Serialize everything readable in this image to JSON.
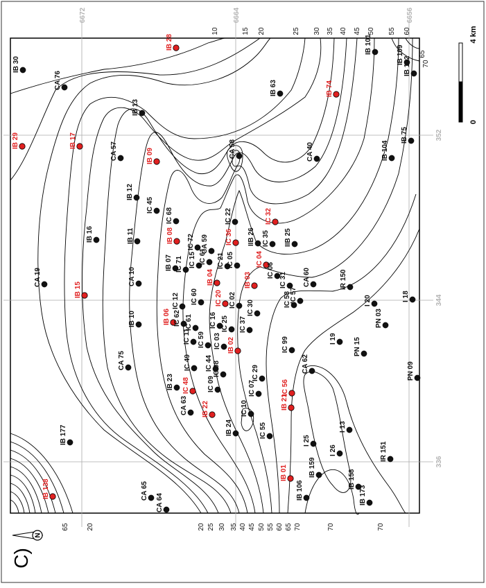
{
  "figure": {
    "panel_label": "C)",
    "scale_bar": {
      "zero_label": "0",
      "end_label": "4 km"
    },
    "north_arrow": {
      "label": "N"
    }
  },
  "colors": {
    "highlight_well": "#e02020",
    "normal_well": "#111111",
    "contour": "#000000",
    "grid": "#aaaaaa",
    "grid_label": "#b4b4b4"
  },
  "grid_labels": {
    "top": [
      "6672",
      "6664",
      "6656"
    ],
    "right": [
      "352",
      "344",
      "336"
    ]
  },
  "contour_labels": {
    "top": [
      "10",
      "15",
      "20",
      "25",
      "30",
      "35",
      "40",
      "45",
      "50",
      "55",
      "60",
      "65",
      "70"
    ],
    "bottom": [
      "20",
      "25",
      "30",
      "35",
      "40",
      "45",
      "50",
      "55",
      "60",
      "65",
      "70",
      "70",
      "70"
    ],
    "left": [
      "65",
      "20"
    ]
  },
  "wells": [
    {
      "name": "IB 30",
      "highlight": false
    },
    {
      "name": "CA 76",
      "highlight": false
    },
    {
      "name": "IB 28",
      "highlight": true
    },
    {
      "name": "IB 63",
      "highlight": false
    },
    {
      "name": "IB 74",
      "highlight": true
    },
    {
      "name": "IB 101",
      "highlight": false
    },
    {
      "name": "IB 109",
      "highlight": false
    },
    {
      "name": "IB 122",
      "highlight": false
    },
    {
      "name": "IB 13",
      "highlight": false
    },
    {
      "name": "IB 17",
      "highlight": true
    },
    {
      "name": "IB 29",
      "highlight": true
    },
    {
      "name": "CA 57",
      "highlight": false
    },
    {
      "name": "IB 09",
      "highlight": true
    },
    {
      "name": "CA 58",
      "highlight": false
    },
    {
      "name": "CA 40",
      "highlight": false
    },
    {
      "name": "IB 104",
      "highlight": false
    },
    {
      "name": "IB 75",
      "highlight": false
    },
    {
      "name": "IB 12",
      "highlight": false
    },
    {
      "name": "IC 45",
      "highlight": false
    },
    {
      "name": "IC 68",
      "highlight": false
    },
    {
      "name": "IC 22",
      "highlight": false
    },
    {
      "name": "IC 32",
      "highlight": true
    },
    {
      "name": "IB 16",
      "highlight": false
    },
    {
      "name": "IB 11",
      "highlight": false
    },
    {
      "name": "IB 08",
      "highlight": true
    },
    {
      "name": "IC 72",
      "highlight": false
    },
    {
      "name": "CA 59",
      "highlight": false
    },
    {
      "name": "IC 36",
      "highlight": true
    },
    {
      "name": "IIB 26",
      "highlight": false
    },
    {
      "name": "IC 35",
      "highlight": false
    },
    {
      "name": "IIB 25",
      "highlight": false
    },
    {
      "name": "CA 19",
      "highlight": false
    },
    {
      "name": "IB 15",
      "highlight": true
    },
    {
      "name": "CA 10",
      "highlight": false
    },
    {
      "name": "IB 07",
      "highlight": false
    },
    {
      "name": "IC 71",
      "highlight": false
    },
    {
      "name": "IC 15",
      "highlight": false
    },
    {
      "name": "IC 61",
      "highlight": false
    },
    {
      "name": "IC 21",
      "highlight": false
    },
    {
      "name": "IC 05",
      "highlight": false
    },
    {
      "name": "IB 04",
      "highlight": true
    },
    {
      "name": "IB 03",
      "highlight": true
    },
    {
      "name": "IC 04",
      "highlight": true
    },
    {
      "name": "IC 06",
      "highlight": false
    },
    {
      "name": "IC 31",
      "highlight": false
    },
    {
      "name": "CA 60",
      "highlight": false
    },
    {
      "name": "IC 57",
      "highlight": false
    },
    {
      "name": "IC 58",
      "highlight": false
    },
    {
      "name": "IR 150",
      "highlight": false
    },
    {
      "name": "IC 12",
      "highlight": false
    },
    {
      "name": "IC 60",
      "highlight": false
    },
    {
      "name": "IC 20",
      "highlight": true
    },
    {
      "name": "IC 02",
      "highlight": false
    },
    {
      "name": "IC 30",
      "highlight": false
    },
    {
      "name": "I 20",
      "highlight": false
    },
    {
      "name": "I 18",
      "highlight": false
    },
    {
      "name": "IB 10",
      "highlight": false
    },
    {
      "name": "IB 06",
      "highlight": true
    },
    {
      "name": "IC 62",
      "highlight": false
    },
    {
      "name": "IC 61",
      "highlight": false
    },
    {
      "name": "IC 16",
      "highlight": false
    },
    {
      "name": "IC 25",
      "highlight": false
    },
    {
      "name": "IC 37",
      "highlight": false
    },
    {
      "name": "I 19",
      "highlight": false
    },
    {
      "name": "PN 03",
      "highlight": false
    },
    {
      "name": "IC 11",
      "highlight": false
    },
    {
      "name": "IC 59",
      "highlight": false
    },
    {
      "name": "IC 03",
      "highlight": false
    },
    {
      "name": "IB 02",
      "highlight": true
    },
    {
      "name": "IC 99",
      "highlight": false
    },
    {
      "name": "PN 15",
      "highlight": false
    },
    {
      "name": "CA 75",
      "highlight": false
    },
    {
      "name": "IC 49",
      "highlight": false
    },
    {
      "name": "IC 44",
      "highlight": false
    },
    {
      "name": "IC 08",
      "highlight": false
    },
    {
      "name": "IC 29",
      "highlight": false
    },
    {
      "name": "IC 07",
      "highlight": false
    },
    {
      "name": "IC 56",
      "highlight": true
    },
    {
      "name": "CA 62",
      "highlight": false
    },
    {
      "name": "PN 09",
      "highlight": false
    },
    {
      "name": "IB 23",
      "highlight": false
    },
    {
      "name": "IC 48",
      "highlight": true
    },
    {
      "name": "IC 09",
      "highlight": false
    },
    {
      "name": "CA 63",
      "highlight": false
    },
    {
      "name": "IB 22",
      "highlight": true
    },
    {
      "name": "IC 10",
      "highlight": false
    },
    {
      "name": "IB 24",
      "highlight": false
    },
    {
      "name": "IC 55",
      "highlight": false
    },
    {
      "name": "IB 21",
      "highlight": true
    },
    {
      "name": "I 25",
      "highlight": false
    },
    {
      "name": "I 13",
      "highlight": false
    },
    {
      "name": "IB 177",
      "highlight": false
    },
    {
      "name": "I 26",
      "highlight": false
    },
    {
      "name": "IR 151",
      "highlight": false
    },
    {
      "name": "IB 01",
      "highlight": true
    },
    {
      "name": "IB 159",
      "highlight": false
    },
    {
      "name": "IB 158",
      "highlight": false
    },
    {
      "name": "IB 173",
      "highlight": false
    },
    {
      "name": "IB 138",
      "highlight": true
    },
    {
      "name": "CA 65",
      "highlight": false
    },
    {
      "name": "CA 64",
      "highlight": false
    },
    {
      "name": "IB 106",
      "highlight": false
    }
  ]
}
